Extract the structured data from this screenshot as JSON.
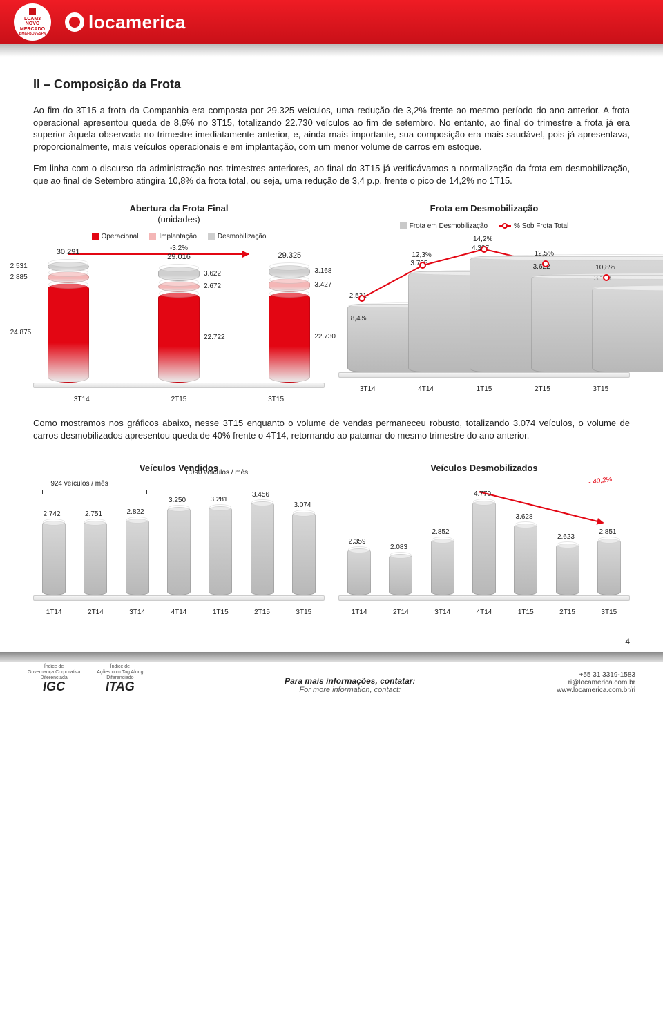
{
  "header": {
    "badge_lines": [
      "LCAM3",
      "NOVO",
      "MERCADO",
      "BM&FBOVESPA"
    ],
    "brand": "locamerica"
  },
  "section_title": "II – Composição da Frota",
  "para1": "Ao fim do 3T15 a frota da Companhia era composta por 29.325 veículos, uma redução de 3,2% frente ao mesmo período do ano anterior. A frota operacional apresentou queda de 8,6% no 3T15, totalizando 22.730 veículos ao fim de setembro. No entanto, ao final do trimestre a frota já era superior àquela observada no trimestre imediatamente anterior, e, ainda mais importante, sua composição era mais saudável, pois já apresentava, proporcionalmente, mais veículos operacionais e em implantação, com um menor volume de carros em estoque.",
  "para2": "Em linha com o discurso da administração nos trimestres anteriores, ao final do 3T15 já verificávamos a normalização da frota em desmobilização, que ao final de Setembro atingira 10,8% da frota total, ou seja, uma redução de 3,4 p.p. frente o pico de 14,2% no 1T15.",
  "chart1": {
    "title_line1": "Abertura da Frota Final",
    "title_line2": "(unidades)",
    "legend": [
      {
        "label": "Operacional",
        "color": "#e30613"
      },
      {
        "label": "Implantação",
        "color": "#f4b6b6"
      },
      {
        "label": "Desmobilização",
        "color": "#cfcfcf"
      }
    ],
    "change_label": "-3,2%",
    "ymax": 31000,
    "categories": [
      "3T14",
      "2T15",
      "3T15"
    ],
    "bars": [
      {
        "total": "30.291",
        "desm": "2.531",
        "desm_v": 2531,
        "impl": "2.885",
        "impl_v": 2885,
        "oper": "24.875",
        "oper_v": 24875
      },
      {
        "total": "29.016",
        "desm": "3.622",
        "desm_v": 3622,
        "impl": "2.672",
        "impl_v": 2672,
        "oper": "22.722",
        "oper_v": 22722
      },
      {
        "total": "29.325",
        "desm": "3.168",
        "desm_v": 3168,
        "impl": "3.427",
        "impl_v": 3427,
        "oper": "22.730",
        "oper_v": 22730
      }
    ]
  },
  "chart2": {
    "title": "Frota em Desmobilização",
    "legend_bar": "Frota em Desmobilização",
    "legend_line": "% Sob Frota Total",
    "bar_color": "#c9c9c9",
    "line_color": "#e30613",
    "ymax": 5000,
    "categories": [
      "3T14",
      "4T14",
      "1T15",
      "2T15",
      "3T15"
    ],
    "bars": [
      {
        "label": "2.531",
        "v": 2531,
        "pct": "8,4%",
        "pct_v": 8.4
      },
      {
        "label": "3.735",
        "v": 3735,
        "pct": "12,3%",
        "pct_v": 12.3
      },
      {
        "label": "4.307",
        "v": 4307,
        "pct": "14,2%",
        "pct_v": 14.2
      },
      {
        "label": "3.622",
        "v": 3622,
        "pct": "12,5%",
        "pct_v": 12.5
      },
      {
        "label": "3.168",
        "v": 3168,
        "pct": "10,8%",
        "pct_v": 10.8
      }
    ]
  },
  "para3": "Como mostramos nos gráficos abaixo, nesse 3T15 enquanto o volume de vendas permaneceu robusto, totalizando 3.074 veículos, o volume de carros desmobilizados apresentou queda de 40% frente o 4T14, retornando ao patamar do mesmo trimestre do ano anterior.",
  "chart3": {
    "title": "Veículos Vendidos",
    "bar_color": "#c9c9c9",
    "ymax": 3800,
    "annot1": "924 veículos / mês",
    "annot2": "1.090 veículos / mês",
    "categories": [
      "1T14",
      "2T14",
      "3T14",
      "4T14",
      "1T15",
      "2T15",
      "3T15"
    ],
    "bars": [
      {
        "label": "2.742",
        "v": 2742
      },
      {
        "label": "2.751",
        "v": 2751
      },
      {
        "label": "2.822",
        "v": 2822
      },
      {
        "label": "3.250",
        "v": 3250
      },
      {
        "label": "3.281",
        "v": 3281
      },
      {
        "label": "3.456",
        "v": 3456
      },
      {
        "label": "3.074",
        "v": 3074
      }
    ]
  },
  "chart4": {
    "title": "Veículos Desmobilizados",
    "bar_color": "#c9c9c9",
    "ymax": 5200,
    "change_label": "- 40,2%",
    "categories": [
      "1T14",
      "2T14",
      "3T14",
      "4T14",
      "1T15",
      "2T15",
      "3T15"
    ],
    "bars": [
      {
        "label": "2.359",
        "v": 2359
      },
      {
        "label": "2.083",
        "v": 2083
      },
      {
        "label": "2.852",
        "v": 2852
      },
      {
        "label": "4.770",
        "v": 4770
      },
      {
        "label": "3.628",
        "v": 3628
      },
      {
        "label": "2.623",
        "v": 2623
      },
      {
        "label": "2.851",
        "v": 2851
      }
    ]
  },
  "page_number": "4",
  "footer": {
    "igc_small": "Índice de\nGovernança Corporativa\nDiferenciada",
    "igc": "IGC",
    "itag_small": "Índice de\nAções com Tag Along\nDiferenciado",
    "itag": "ITAG",
    "contact_label": "Para mais informações, contatar:",
    "contact_sub": "For more information, contact:",
    "phone": "+55 31 3319-1583",
    "email": "ri@locamerica.com.br",
    "url": "www.locamerica.com.br/ri"
  }
}
